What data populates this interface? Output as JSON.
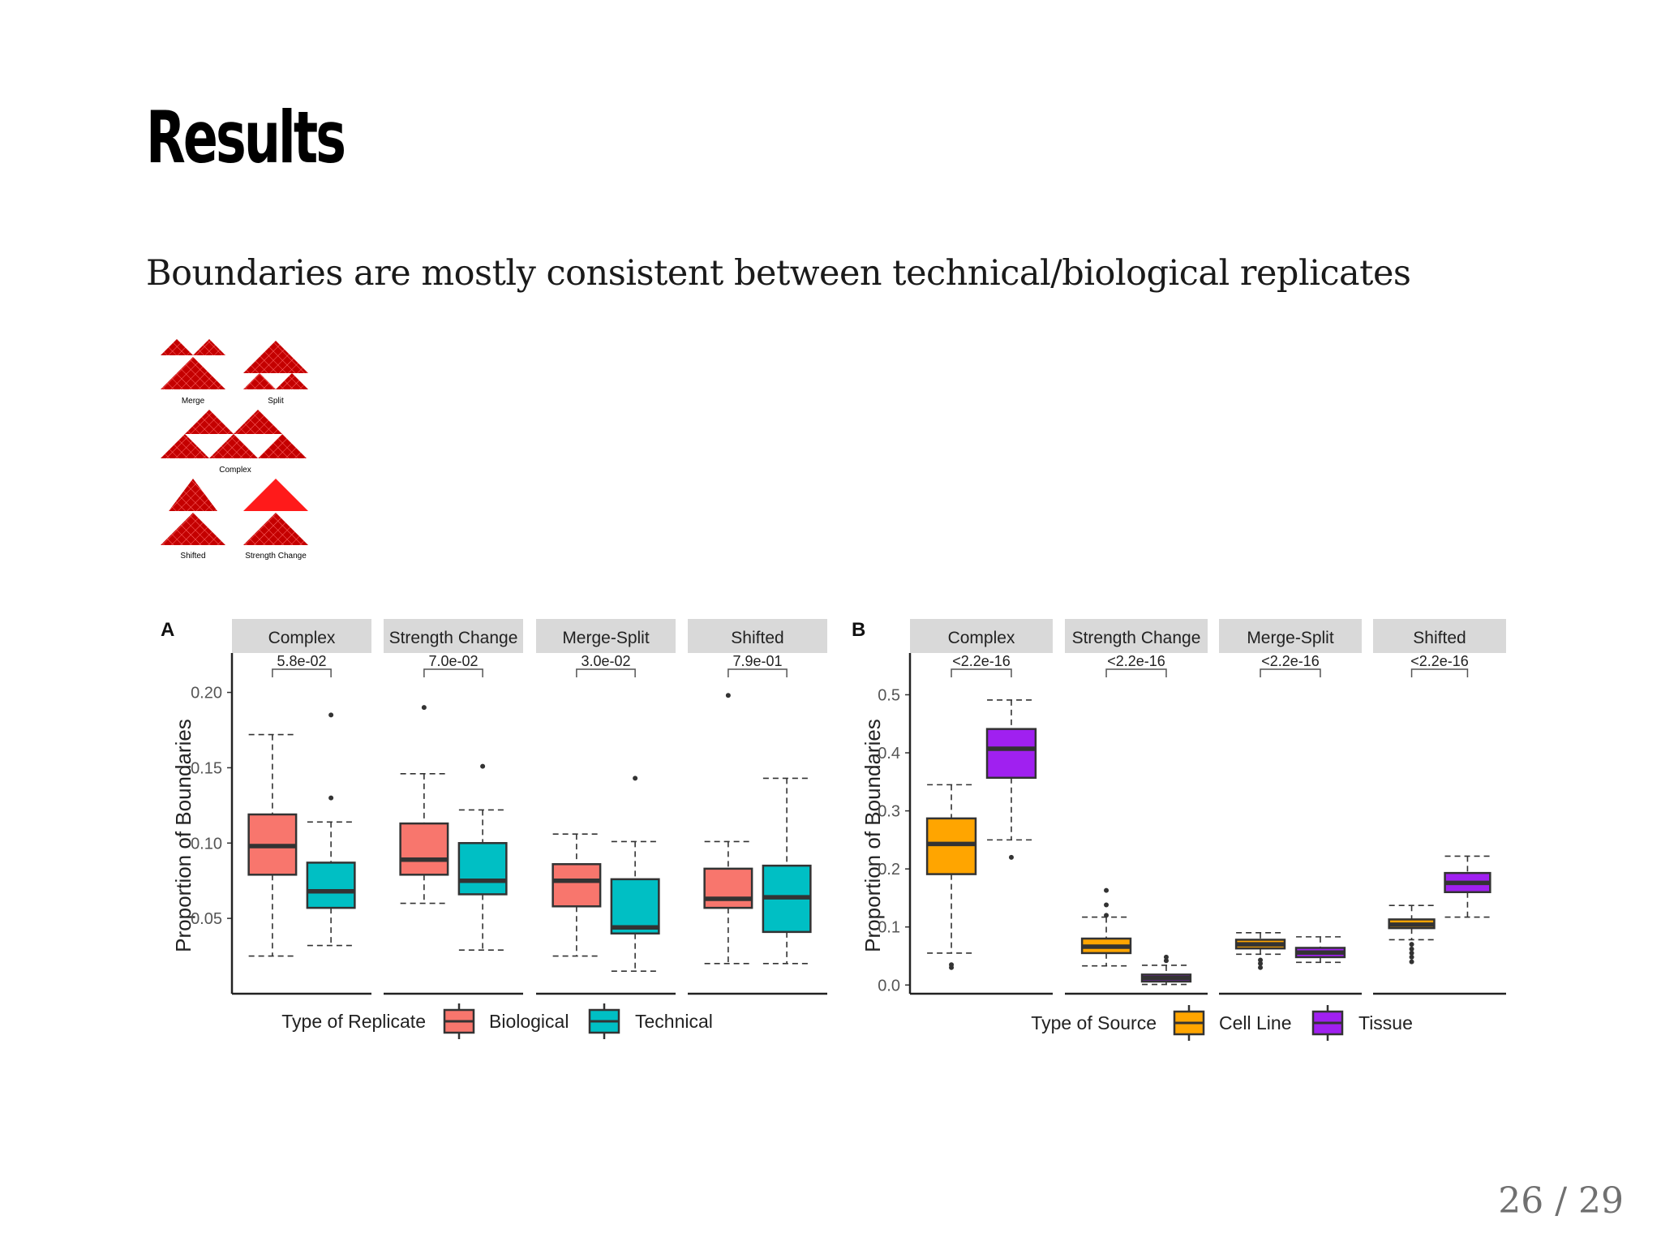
{
  "slide": {
    "title": "Results",
    "subtitle": "Boundaries are mostly consistent between technical/biological replicates",
    "page": "26 / 29"
  },
  "legend_figure": {
    "labels": [
      "Merge",
      "Split",
      "Complex",
      "Shifted",
      "Strength Change"
    ]
  },
  "colors": {
    "biological": "#f8766d",
    "technical": "#00bfc4",
    "cell_line": "#ffa500",
    "tissue": "#a020f0",
    "strip": "#d9d9d9",
    "dark": "#333333"
  },
  "chart_data": [
    {
      "type": "box",
      "panel_label": "A",
      "ylabel": "Proportion of Boundaries",
      "ylim": [
        0,
        0.21
      ],
      "yticks": [
        "0.05",
        "0.10",
        "0.15",
        "0.20"
      ],
      "legend_title": "Type of Replicate",
      "series_names": [
        "Biological",
        "Technical"
      ],
      "facets": [
        {
          "name": "Complex",
          "pvalue": "5.8e-02",
          "boxes": [
            {
              "series": "Biological",
              "whisker_low": 0.025,
              "q1": 0.079,
              "median": 0.098,
              "q3": 0.119,
              "whisker_high": 0.172,
              "outliers": []
            },
            {
              "series": "Technical",
              "whisker_low": 0.032,
              "q1": 0.057,
              "median": 0.068,
              "q3": 0.087,
              "whisker_high": 0.114,
              "outliers": [
                0.13,
                0.185
              ]
            }
          ]
        },
        {
          "name": "Strength Change",
          "pvalue": "7.0e-02",
          "boxes": [
            {
              "series": "Biological",
              "whisker_low": 0.06,
              "q1": 0.079,
              "median": 0.089,
              "q3": 0.113,
              "whisker_high": 0.146,
              "outliers": [
                0.19
              ]
            },
            {
              "series": "Technical",
              "whisker_low": 0.029,
              "q1": 0.066,
              "median": 0.075,
              "q3": 0.1,
              "whisker_high": 0.122,
              "outliers": [
                0.151
              ]
            }
          ]
        },
        {
          "name": "Merge-Split",
          "pvalue": "3.0e-02",
          "boxes": [
            {
              "series": "Biological",
              "whisker_low": 0.025,
              "q1": 0.058,
              "median": 0.075,
              "q3": 0.086,
              "whisker_high": 0.106,
              "outliers": []
            },
            {
              "series": "Technical",
              "whisker_low": 0.015,
              "q1": 0.04,
              "median": 0.044,
              "q3": 0.076,
              "whisker_high": 0.101,
              "outliers": [
                0.143
              ]
            }
          ]
        },
        {
          "name": "Shifted",
          "pvalue": "7.9e-01",
          "boxes": [
            {
              "series": "Biological",
              "whisker_low": 0.02,
              "q1": 0.057,
              "median": 0.063,
              "q3": 0.083,
              "whisker_high": 0.101,
              "outliers": [
                0.198
              ]
            },
            {
              "series": "Technical",
              "whisker_low": 0.02,
              "q1": 0.041,
              "median": 0.064,
              "q3": 0.085,
              "whisker_high": 0.143,
              "outliers": []
            }
          ]
        }
      ]
    },
    {
      "type": "box",
      "panel_label": "B",
      "ylabel": "Proportion of Boundaries",
      "ylim": [
        -0.015,
        0.53
      ],
      "yticks": [
        "0.0",
        "0.1",
        "0.2",
        "0.3",
        "0.4",
        "0.5"
      ],
      "legend_title": "Type of Source",
      "series_names": [
        "Cell Line",
        "Tissue"
      ],
      "facets": [
        {
          "name": "Complex",
          "pvalue": "<2.2e-16",
          "boxes": [
            {
              "series": "Cell Line",
              "whisker_low": 0.055,
              "q1": 0.191,
              "median": 0.243,
              "q3": 0.287,
              "whisker_high": 0.345,
              "outliers": [
                0.03,
                0.035
              ]
            },
            {
              "series": "Tissue",
              "whisker_low": 0.25,
              "q1": 0.357,
              "median": 0.407,
              "q3": 0.441,
              "whisker_high": 0.491,
              "outliers": [
                0.22
              ]
            }
          ]
        },
        {
          "name": "Strength Change",
          "pvalue": "<2.2e-16",
          "boxes": [
            {
              "series": "Cell Line",
              "whisker_low": 0.033,
              "q1": 0.055,
              "median": 0.066,
              "q3": 0.08,
              "whisker_high": 0.117,
              "outliers": [
                0.12,
                0.138,
                0.163
              ]
            },
            {
              "series": "Tissue",
              "whisker_low": 0.001,
              "q1": 0.006,
              "median": 0.012,
              "q3": 0.018,
              "whisker_high": 0.034,
              "outliers": [
                0.042,
                0.048
              ]
            }
          ]
        },
        {
          "name": "Merge-Split",
          "pvalue": "<2.2e-16",
          "boxes": [
            {
              "series": "Cell Line",
              "whisker_low": 0.053,
              "q1": 0.063,
              "median": 0.07,
              "q3": 0.078,
              "whisker_high": 0.09,
              "outliers": [
                0.03,
                0.037,
                0.043
              ]
            },
            {
              "series": "Tissue",
              "whisker_low": 0.039,
              "q1": 0.048,
              "median": 0.056,
              "q3": 0.064,
              "whisker_high": 0.083,
              "outliers": []
            }
          ]
        },
        {
          "name": "Shifted",
          "pvalue": "<2.2e-16",
          "boxes": [
            {
              "series": "Cell Line",
              "whisker_low": 0.078,
              "q1": 0.098,
              "median": 0.104,
              "q3": 0.113,
              "whisker_high": 0.137,
              "outliers": [
                0.04,
                0.048,
                0.055,
                0.062,
                0.07
              ]
            },
            {
              "series": "Tissue",
              "whisker_low": 0.117,
              "q1": 0.16,
              "median": 0.176,
              "q3": 0.193,
              "whisker_high": 0.222,
              "outliers": []
            }
          ]
        }
      ]
    }
  ]
}
